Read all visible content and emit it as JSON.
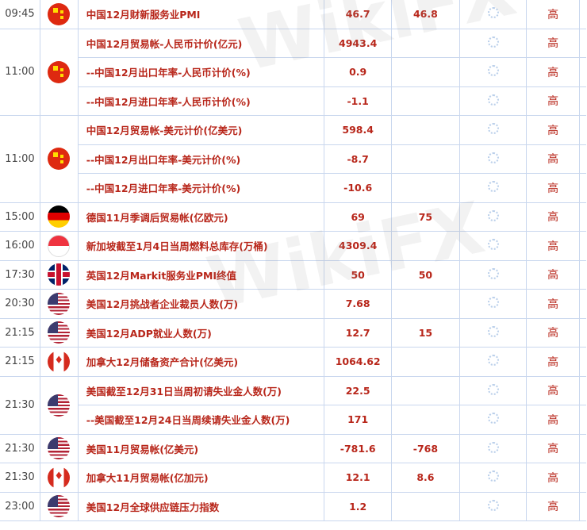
{
  "watermark": "WikiFX",
  "colors": {
    "event_text": "#b8261a",
    "grid": "#c9d7ee",
    "time_text": "#444444"
  },
  "groups": [
    {
      "time": "09:45",
      "flag": "china",
      "rows": [
        {
          "event": "中国12月财新服务业PMI",
          "previous": "46.7",
          "forecast": "46.8",
          "importance": "高"
        }
      ]
    },
    {
      "time": "11:00",
      "flag": "china",
      "rows": [
        {
          "event": "中国12月贸易帐-人民币计价(亿元)",
          "previous": "4943.4",
          "forecast": "",
          "importance": "高"
        },
        {
          "event": "--中国12月出口年率-人民币计价(%)",
          "previous": "0.9",
          "forecast": "",
          "importance": "高"
        },
        {
          "event": "--中国12月进口年率-人民币计价(%)",
          "previous": "-1.1",
          "forecast": "",
          "importance": "高"
        }
      ]
    },
    {
      "time": "11:00",
      "flag": "china",
      "rows": [
        {
          "event": "中国12月贸易帐-美元计价(亿美元)",
          "previous": "598.4",
          "forecast": "",
          "importance": "高"
        },
        {
          "event": "--中国12月出口年率-美元计价(%)",
          "previous": "-8.7",
          "forecast": "",
          "importance": "高"
        },
        {
          "event": "--中国12月进口年率-美元计价(%)",
          "previous": "-10.6",
          "forecast": "",
          "importance": "高"
        }
      ]
    },
    {
      "time": "15:00",
      "flag": "germany",
      "rows": [
        {
          "event": "德国11月季调后贸易帐(亿欧元)",
          "previous": "69",
          "forecast": "75",
          "importance": "高"
        }
      ]
    },
    {
      "time": "16:00",
      "flag": "singapore",
      "rows": [
        {
          "event": "新加坡截至1月4日当周燃料总库存(万桶)",
          "previous": "4309.4",
          "forecast": "",
          "importance": "高"
        }
      ]
    },
    {
      "time": "17:30",
      "flag": "uk",
      "rows": [
        {
          "event": "英国12月Markit服务业PMI终值",
          "previous": "50",
          "forecast": "50",
          "importance": "高"
        }
      ]
    },
    {
      "time": "20:30",
      "flag": "usa",
      "rows": [
        {
          "event": "美国12月挑战者企业裁员人数(万)",
          "previous": "7.68",
          "forecast": "",
          "importance": "高"
        }
      ]
    },
    {
      "time": "21:15",
      "flag": "usa",
      "rows": [
        {
          "event": "美国12月ADP就业人数(万)",
          "previous": "12.7",
          "forecast": "15",
          "importance": "高"
        }
      ]
    },
    {
      "time": "21:15",
      "flag": "canada",
      "rows": [
        {
          "event": "加拿大12月储备资产合计(亿美元)",
          "previous": "1064.62",
          "forecast": "",
          "importance": "高"
        }
      ]
    },
    {
      "time": "21:30",
      "flag": "usa",
      "rows": [
        {
          "event": "美国截至12月31日当周初请失业金人数(万)",
          "previous": "22.5",
          "forecast": "",
          "importance": "高"
        },
        {
          "event": "--美国截至12月24日当周续请失业金人数(万)",
          "previous": "171",
          "forecast": "",
          "importance": "高"
        }
      ]
    },
    {
      "time": "21:30",
      "flag": "usa",
      "rows": [
        {
          "event": "美国11月贸易帐(亿美元)",
          "previous": "-781.6",
          "forecast": "-768",
          "importance": "高"
        }
      ]
    },
    {
      "time": "21:30",
      "flag": "canada",
      "rows": [
        {
          "event": "加拿大11月贸易帐(亿加元)",
          "previous": "12.1",
          "forecast": "8.6",
          "importance": "高"
        }
      ]
    },
    {
      "time": "23:00",
      "flag": "usa",
      "rows": [
        {
          "event": "美国12月全球供应链压力指数",
          "previous": "1.2",
          "forecast": "",
          "importance": "高"
        }
      ]
    }
  ]
}
